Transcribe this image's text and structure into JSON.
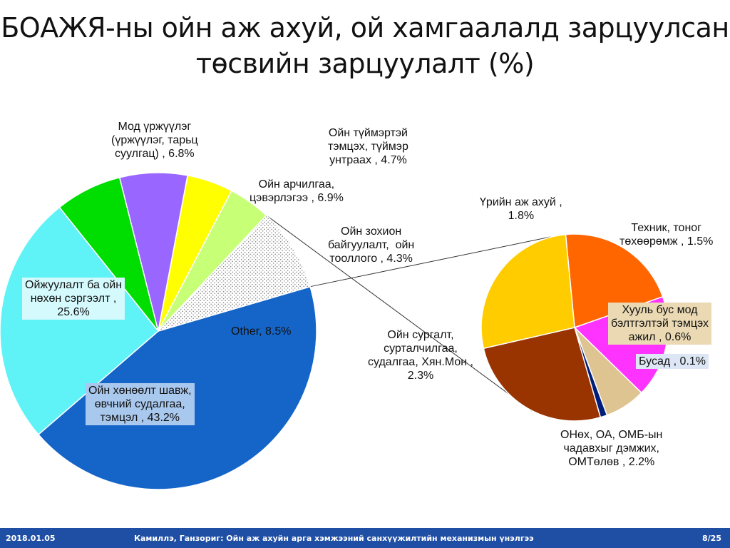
{
  "slide": {
    "title_line1": "БОАЖЯ-ны ойн аж ахуй, ой хамгаалалд зарцуулсан",
    "title_line2": "төсвийн зарцуулалт (%)"
  },
  "chart_data": {
    "type": "pie",
    "subtype": "pie-of-pie",
    "main": {
      "slices": [
        {
          "label": "Ойн хөнөөлт шавж,\nөвчний судалгаа,\nтэмцэл , 43.2%",
          "value": 43.2,
          "color": "#1565c8",
          "box_color": "#a9c8ee"
        },
        {
          "label": "Ойжуулалт ба ойн\nнөхөн сэргээлт ,\n25.6%",
          "value": 25.6,
          "color": "#5ff2f7",
          "box_color": "#d4fafd"
        },
        {
          "label": "Мод үржүүлэг\n(үржүүлэг, тарьц\nсуулгац) , 6.8%",
          "value": 6.8,
          "color": "#00dd00"
        },
        {
          "label": "Ойн арчилгаа,\nцэвэрлэгээ , 6.9%",
          "value": 6.9,
          "color": "#9966ff"
        },
        {
          "label": "Ойн түймэртэй\nтэмцэх, түймэр\nунтраах , 4.7%",
          "value": 4.7,
          "color": "#ffff00"
        },
        {
          "label": "Ойн зохион\nбайгуулалт,  ойн\nтооллого , 4.3%",
          "value": 4.3,
          "color": "#c7ff77"
        },
        {
          "label": "Other, 8.5%",
          "value": 8.5,
          "color": "#ffffff",
          "pattern": "dotted"
        }
      ]
    },
    "secondary": {
      "slices": [
        {
          "label": "Үрийн аж ахуй ,\n1.8%",
          "value": 1.8,
          "color": "#ff6600"
        },
        {
          "label": "Техник, тоног\nтөхөөрөмж , 1.5%",
          "value": 1.5,
          "color": "#ff33ff"
        },
        {
          "label": "Хууль бус мод\nбэлтгэлтэй тэмцэх\nажил , 0.6%",
          "value": 0.6,
          "color": "#ddc490",
          "box_color": "#ead9b3"
        },
        {
          "label": "Бусад , 0.1%",
          "value": 0.1,
          "color": "#001d7a",
          "box_color": "#dde6f4"
        },
        {
          "label": "ОНөх, ОА, ОМБ-ын\nчадавхыг дэмжих,\nОМТөлөв , 2.2%",
          "value": 2.2,
          "color": "#993300"
        },
        {
          "label": "Ойн сургалт,\nсурталчилгаа,\nсудалгаа, Хян.Мон ,\n2.3%",
          "value": 2.3,
          "color": "#ffcc00"
        }
      ]
    }
  },
  "footer": {
    "date": "2018.01.05",
    "text": "Камиллэ, Ганзориг: Ойн аж ахуйн арга хэмжээний санхүүжилтийн механизмын үнэлгээ",
    "page": "8/25",
    "color": "#1f4ea5"
  }
}
